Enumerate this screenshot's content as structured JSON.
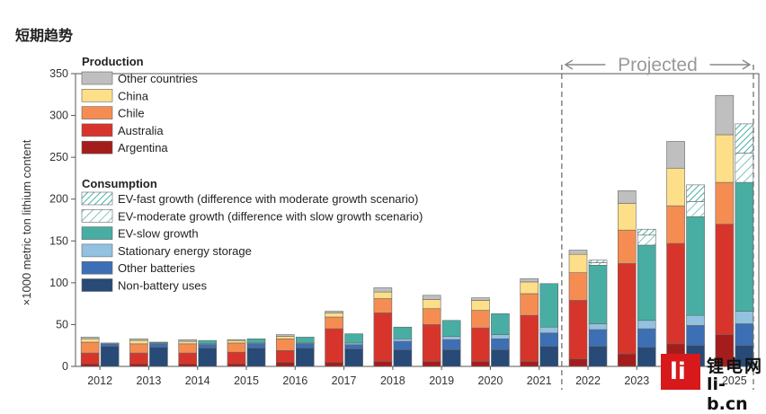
{
  "page": {
    "heading": "短期趋势"
  },
  "colors": {
    "other_countries": "#bfbfbf",
    "china": "#fddf8a",
    "chile": "#f58d52",
    "australia": "#d7352b",
    "argentina": "#a51c1c",
    "ev_slow": "#48aea3",
    "stationary": "#93c1e0",
    "other_batteries": "#3d6fb5",
    "non_battery": "#274a77",
    "hatch": "#48aea3"
  },
  "chart_data": {
    "type": "bar",
    "title": "",
    "ylabel": "×1000 metric ton lithium content",
    "xlabel": "",
    "ylim": [
      0,
      350
    ],
    "yticks": [
      0,
      50,
      100,
      150,
      200,
      250,
      300,
      350
    ],
    "categories": [
      "2012",
      "2013",
      "2014",
      "2015",
      "2016",
      "2017",
      "2018",
      "2019",
      "2020",
      "2021",
      "2022",
      "2023",
      "2024",
      "2025"
    ],
    "projected_label": "Projected",
    "projected_from": "2022",
    "legend": {
      "production_title": "Production",
      "production_items": [
        {
          "key": "other_countries",
          "label": "Other countries"
        },
        {
          "key": "china",
          "label": "China"
        },
        {
          "key": "chile",
          "label": "Chile"
        },
        {
          "key": "australia",
          "label": "Australia"
        },
        {
          "key": "argentina",
          "label": "Argentina"
        }
      ],
      "consumption_title": "Consumption",
      "consumption_items": [
        {
          "key": "ev_fast",
          "label": "EV-fast growth (difference with moderate growth scenario)",
          "pattern": "hatch-dense"
        },
        {
          "key": "ev_moderate",
          "label": "EV-moderate growth (difference with slow growth scenario)",
          "pattern": "hatch-light"
        },
        {
          "key": "ev_slow",
          "label": "EV-slow growth"
        },
        {
          "key": "stationary",
          "label": "Stationary energy storage"
        },
        {
          "key": "other_batteries",
          "label": "Other batteries"
        },
        {
          "key": "non_battery",
          "label": "Non-battery uses"
        }
      ]
    },
    "production_order": [
      "argentina",
      "australia",
      "chile",
      "china",
      "other_countries"
    ],
    "consumption_order": [
      "non_battery",
      "other_batteries",
      "stationary",
      "ev_slow",
      "ev_moderate",
      "ev_fast"
    ],
    "production": {
      "argentina": [
        3,
        3,
        3,
        3,
        5,
        5,
        6,
        6,
        6,
        6,
        9,
        15,
        27,
        38
      ],
      "australia": [
        13,
        13,
        13,
        14,
        14,
        40,
        58,
        44,
        40,
        55,
        70,
        108,
        120,
        132
      ],
      "chile": [
        13,
        11,
        11,
        11,
        14,
        14,
        17,
        19,
        21,
        26,
        33,
        40,
        45,
        50
      ],
      "china": [
        4,
        4,
        3,
        3,
        3,
        5,
        8,
        11,
        12,
        14,
        22,
        32,
        45,
        57
      ],
      "other_countries": [
        2,
        2,
        2,
        1,
        2,
        2,
        5,
        5,
        3,
        4,
        5,
        15,
        32,
        47
      ]
    },
    "consumption": {
      "non_battery": [
        24,
        23,
        22,
        22,
        22,
        21,
        20,
        20,
        20,
        24,
        24,
        23,
        25,
        25
      ],
      "other_batteries": [
        3,
        4,
        4,
        5,
        5,
        5,
        10,
        12,
        13,
        16,
        20,
        22,
        24,
        26
      ],
      "stationary": [
        1,
        1,
        1,
        1,
        1,
        2,
        3,
        4,
        5,
        7,
        7,
        10,
        12,
        15
      ],
      "ev_slow": [
        0,
        1,
        4,
        5,
        7,
        11,
        14,
        19,
        25,
        52,
        70,
        90,
        118,
        154
      ],
      "ev_moderate": [
        0,
        0,
        0,
        0,
        0,
        0,
        0,
        0,
        0,
        0,
        3,
        12,
        18,
        35
      ],
      "ev_fast": [
        0,
        0,
        0,
        0,
        0,
        0,
        0,
        0,
        0,
        0,
        3,
        7,
        20,
        35
      ]
    }
  },
  "watermark": {
    "logo_text": "li",
    "cn_text": "锂电网",
    "url_text": "li-b.cn"
  }
}
